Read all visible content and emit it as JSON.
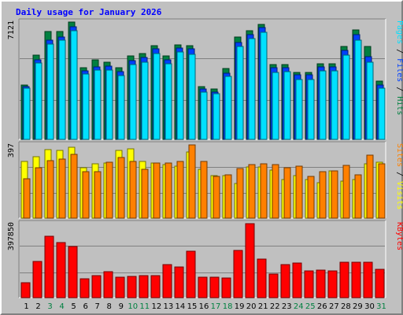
{
  "chart_data": {
    "type": "bar",
    "title": "Daily usage for January 2026",
    "categories": [
      "1",
      "2",
      "3",
      "4",
      "5",
      "6",
      "7",
      "8",
      "9",
      "10",
      "11",
      "12",
      "13",
      "14",
      "15",
      "16",
      "17",
      "18",
      "19",
      "20",
      "21",
      "22",
      "23",
      "24",
      "25",
      "26",
      "27",
      "28",
      "29",
      "30",
      "31"
    ],
    "weekend_days": [
      "3",
      "4",
      "10",
      "11",
      "17",
      "18",
      "24",
      "25",
      "31"
    ],
    "colors": {
      "title": "#0000ff",
      "hits": "#008040",
      "files": "#0040ff",
      "pages": "#00e0ff",
      "visits": "#ffff00",
      "sites": "#ff8000",
      "kbytes": "#ff0000",
      "day_normal": "#000000",
      "day_weekend": "#008040",
      "plot_bg": "#c0c0c0"
    },
    "panels": [
      {
        "id": "hits-files-pages",
        "max_label": "7121",
        "ylim": [
          0,
          7121
        ],
        "legend_parts": [
          {
            "text": "Pages",
            "color": "#00e0ff"
          },
          {
            "text": " / ",
            "color": "#000000"
          },
          {
            "text": "Files",
            "color": "#0040ff"
          },
          {
            "text": " / ",
            "color": "#000000"
          },
          {
            "text": "Hits",
            "color": "#008040"
          }
        ],
        "series": [
          {
            "name": "Hits",
            "color": "#008040",
            "values": [
              3300,
              5100,
              6550,
              6550,
              7121,
              4350,
              4850,
              4700,
              4350,
              5050,
              5200,
              5700,
              5050,
              5750,
              5700,
              3200,
              3050,
              4300,
              6200,
              6600,
              7000,
              4550,
              4550,
              4050,
              4050,
              4600,
              4600,
              5650,
              6650,
              5650,
              3550
            ]
          },
          {
            "name": "Files",
            "color": "#0040ff",
            "values": [
              3200,
              4850,
              6000,
              6200,
              6850,
              4150,
              4400,
              4450,
              4100,
              4800,
              4950,
              5500,
              4850,
              5550,
              5500,
              3050,
              2850,
              4000,
              5900,
              6350,
              6800,
              4350,
              4350,
              3900,
              3900,
              4400,
              4400,
              5400,
              6350,
              5000,
              3300
            ]
          },
          {
            "name": "Pages",
            "color": "#00e0ff",
            "values": [
              3100,
              4650,
              5800,
              6000,
              6600,
              3950,
              4200,
              4200,
              3850,
              4550,
              4700,
              5200,
              4600,
              5300,
              5150,
              2850,
              2750,
              3800,
              5650,
              6100,
              6500,
              4050,
              4100,
              3650,
              3650,
              4150,
              4150,
              5100,
              6000,
              4700,
              3100
            ]
          }
        ]
      },
      {
        "id": "visits-sites",
        "max_label": "397",
        "ylim": [
          0,
          397
        ],
        "legend_parts": [
          {
            "text": "Sites",
            "color": "#ff8000"
          },
          {
            "text": " / ",
            "color": "#000000"
          },
          {
            "text": "Visits",
            "color": "#ffff00"
          }
        ],
        "series": [
          {
            "name": "Visits",
            "color": "#ffff00",
            "values": [
              307,
              333,
              372,
              369,
              384,
              275,
              294,
              297,
              368,
              376,
              307,
              300,
              290,
              281,
              360,
              266,
              232,
              230,
              187,
              276,
              278,
              262,
              209,
              229,
              209,
              190,
              255,
              200,
              210,
              294,
              302
            ]
          },
          {
            "name": "Sites",
            "color": "#ff8000",
            "values": [
              212,
              274,
              312,
              321,
              347,
              250,
              252,
              305,
              327,
              306,
              264,
              298,
              300,
              308,
              397,
              306,
              225,
              234,
              271,
              289,
              295,
              292,
              273,
              280,
              225,
              250,
              255,
              284,
              235,
              340,
              295
            ]
          }
        ]
      },
      {
        "id": "kbytes",
        "max_label": "397850",
        "ylim": [
          0,
          397850
        ],
        "legend_parts": [
          {
            "text": "KBytes",
            "color": "#ff0000"
          }
        ],
        "series": [
          {
            "name": "KBytes",
            "color": "#ff0000",
            "values": [
              80000,
              193000,
              330000,
              295000,
              275000,
              100000,
              117000,
              140000,
              112000,
              115000,
              117000,
              120000,
              177000,
              167000,
              250000,
              112000,
              110000,
              105000,
              255000,
              397850,
              208000,
              128000,
              178000,
              187000,
              142000,
              150000,
              143000,
              191000,
              190000,
              190000,
              152000
            ]
          }
        ]
      }
    ]
  }
}
